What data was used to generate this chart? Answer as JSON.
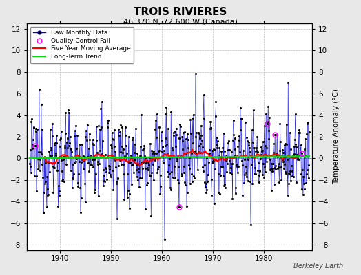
{
  "title": "TROIS RIVIERES",
  "subtitle": "46.370 N, 72.600 W (Canada)",
  "ylabel": "Temperature Anomaly (°C)",
  "watermark": "Berkeley Earth",
  "xlim": [
    1933.5,
    1989.5
  ],
  "ylim": [
    -8.5,
    12.5
  ],
  "yticks": [
    -8,
    -6,
    -4,
    -2,
    0,
    2,
    4,
    6,
    8,
    10,
    12
  ],
  "xticks": [
    1940,
    1950,
    1960,
    1970,
    1980
  ],
  "year_start": 1934,
  "year_end": 1988,
  "background_color": "#e8e8e8",
  "plot_background": "#ffffff",
  "bar_color": "#8888ff",
  "line_color": "#0000cc",
  "dot_color": "#000000",
  "ma_color": "#ff0000",
  "trend_color": "#00dd00",
  "qc_color": "#ff00ff",
  "seed": 12345
}
